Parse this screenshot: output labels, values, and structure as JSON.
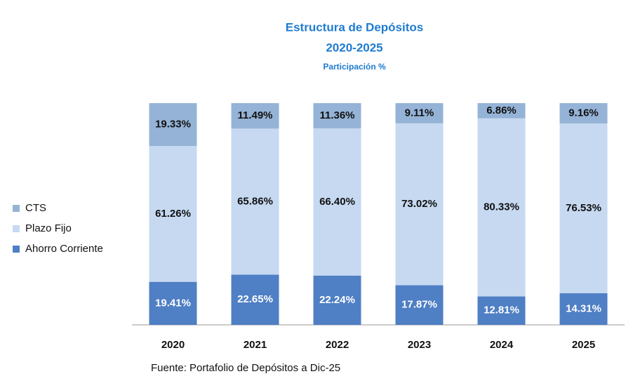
{
  "chart_data": {
    "type": "stacked_bar",
    "title": "Estructura de Depósitos",
    "subtitle": "2020-2025",
    "subtitle2": "Participación %",
    "source": "Fuente: Portafolio de Depósitos  a Dic-25",
    "categories": [
      "2020",
      "2021",
      "2022",
      "2023",
      "2024",
      "2025"
    ],
    "ylim": [
      0,
      100
    ],
    "legend": "left",
    "series": [
      {
        "name": "Ahorro Corriente",
        "color": "#4f7fc4",
        "values": [
          19.41,
          22.65,
          22.24,
          17.87,
          12.81,
          14.31
        ],
        "value_labels": [
          "19.41%",
          "22.65%",
          "22.24%",
          "17.87%",
          "12.81%",
          "14.31%"
        ]
      },
      {
        "name": "Plazo Fijo",
        "color": "#c6d9f1",
        "values": [
          61.26,
          65.86,
          66.4,
          73.02,
          80.33,
          76.53
        ],
        "value_labels": [
          "61.26%",
          "65.86%",
          "66.40%",
          "73.02%",
          "80.33%",
          "76.53%"
        ]
      },
      {
        "name": "CTS",
        "color": "#95b3d7",
        "values": [
          19.33,
          11.49,
          11.36,
          9.11,
          6.86,
          9.16
        ],
        "value_labels": [
          "19.33%",
          "11.49%",
          "11.36%",
          "9.11%",
          "6.86%",
          "9.16%"
        ]
      }
    ]
  }
}
